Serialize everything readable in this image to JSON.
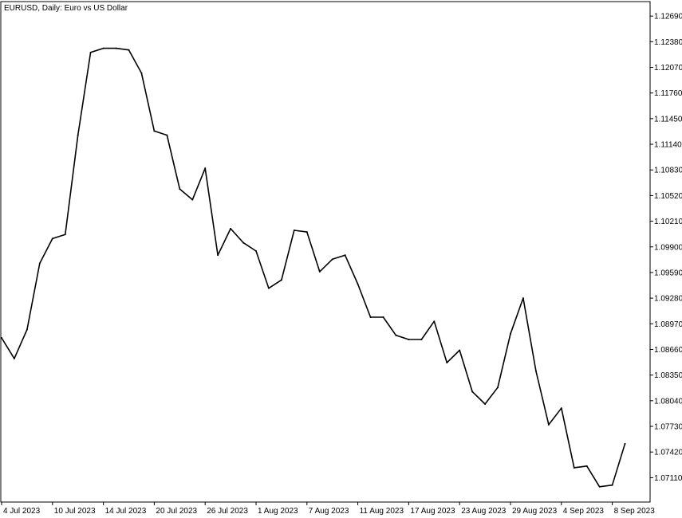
{
  "chart_data": {
    "type": "line",
    "title": "EURUSD, Daily:  Euro vs US Dollar",
    "grid": false,
    "legend": "none",
    "line_color": "#000000",
    "ylim": [
      1.06815,
      1.12865
    ],
    "y_ticks": [
      "1.12690",
      "1.12380",
      "1.12070",
      "1.11760",
      "1.11450",
      "1.11140",
      "1.10830",
      "1.10520",
      "1.10210",
      "1.09900",
      "1.09590",
      "1.09280",
      "1.08970",
      "1.08660",
      "1.08350",
      "1.08040",
      "1.07730",
      "1.07420",
      "1.07110"
    ],
    "x_tick_labels": [
      {
        "index": 0,
        "label": "4 Jul 2023"
      },
      {
        "index": 4,
        "label": "10 Jul 2023"
      },
      {
        "index": 8,
        "label": "14 Jul 2023"
      },
      {
        "index": 12,
        "label": "20 Jul 2023"
      },
      {
        "index": 16,
        "label": "26 Jul 2023"
      },
      {
        "index": 20,
        "label": "1 Aug 2023"
      },
      {
        "index": 24,
        "label": "7 Aug 2023"
      },
      {
        "index": 28,
        "label": "11 Aug 2023"
      },
      {
        "index": 32,
        "label": "17 Aug 2023"
      },
      {
        "index": 36,
        "label": "23 Aug 2023"
      },
      {
        "index": 40,
        "label": "29 Aug 2023"
      },
      {
        "index": 44,
        "label": "4 Sep 2023"
      },
      {
        "index": 48,
        "label": "8 Sep 2023"
      }
    ],
    "values": [
      1.088,
      1.0855,
      1.089,
      1.097,
      1.1,
      1.1005,
      1.1125,
      1.1225,
      1.123,
      1.123,
      1.1228,
      1.12,
      1.113,
      1.1125,
      1.106,
      1.1047,
      1.1085,
      1.098,
      1.1012,
      1.0995,
      1.0985,
      1.094,
      1.095,
      1.101,
      1.1008,
      1.096,
      1.0975,
      1.098,
      1.0945,
      1.0905,
      1.0905,
      1.0883,
      1.0878,
      1.0878,
      1.09,
      1.085,
      1.0865,
      1.0815,
      1.08,
      1.082,
      1.0885,
      1.0928,
      1.084,
      1.0775,
      1.0795,
      1.0723,
      1.0725,
      1.07,
      1.0702,
      1.0752
    ]
  }
}
